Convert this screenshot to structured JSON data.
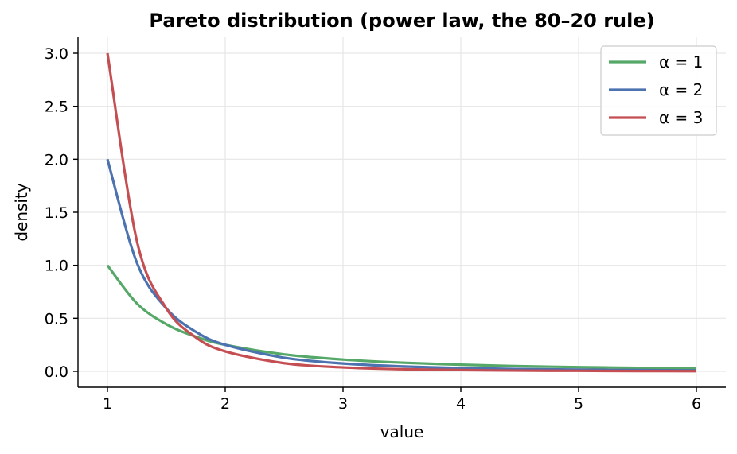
{
  "chart_data": {
    "type": "line",
    "title": "Pareto distribution (power law, the 80–20 rule)",
    "xlabel": "value",
    "ylabel": "density",
    "xlim": [
      0.75,
      6.25
    ],
    "ylim": [
      -0.15,
      3.15
    ],
    "xticks": [
      1,
      2,
      3,
      4,
      5,
      6
    ],
    "xtick_labels": [
      "1",
      "2",
      "3",
      "4",
      "5",
      "6"
    ],
    "yticks": [
      0.0,
      0.5,
      1.0,
      1.5,
      2.0,
      2.5,
      3.0
    ],
    "ytick_labels": [
      "0.0",
      "0.5",
      "1.0",
      "1.5",
      "2.0",
      "2.5",
      "3.0"
    ],
    "grid": true,
    "legend_position": "top-right",
    "x": [
      1.0,
      1.25,
      1.5,
      1.75,
      2.0,
      2.5,
      3.0,
      3.5,
      4.0,
      4.5,
      5.0,
      5.5,
      6.0
    ],
    "series": [
      {
        "name": "α = 1",
        "color": "#55a868",
        "values": [
          1.0,
          0.64,
          0.444,
          0.327,
          0.25,
          0.16,
          0.111,
          0.082,
          0.063,
          0.049,
          0.04,
          0.033,
          0.028
        ]
      },
      {
        "name": "α = 2",
        "color": "#4c72b0",
        "values": [
          2.0,
          1.024,
          0.593,
          0.373,
          0.25,
          0.128,
          0.074,
          0.047,
          0.031,
          0.022,
          0.016,
          0.012,
          0.009
        ]
      },
      {
        "name": "α = 3",
        "color": "#c44e52",
        "values": [
          3.0,
          1.229,
          0.593,
          0.32,
          0.188,
          0.077,
          0.037,
          0.02,
          0.012,
          0.007,
          0.005,
          0.003,
          0.002
        ]
      }
    ]
  }
}
